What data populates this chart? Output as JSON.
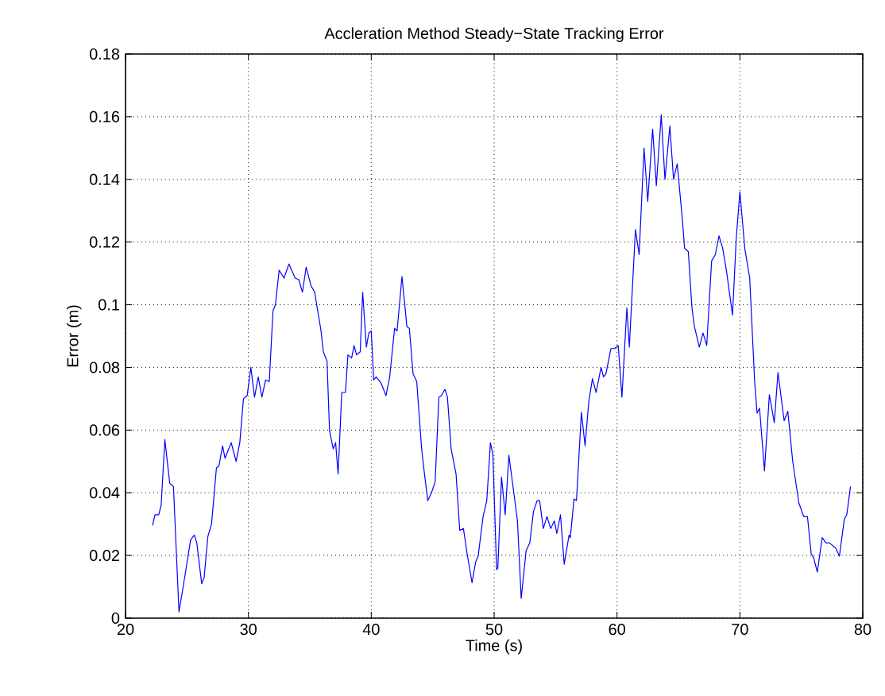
{
  "chart_data": {
    "type": "line",
    "title": "Accleration Method Steady−State Tracking Error",
    "xlabel": "Time (s)",
    "ylabel": "Error (m)",
    "xlim": [
      20,
      80
    ],
    "ylim": [
      0,
      0.18
    ],
    "xticks": [
      20,
      30,
      40,
      50,
      60,
      70,
      80
    ],
    "yticks": [
      0,
      0.02,
      0.04,
      0.06,
      0.08,
      0.1,
      0.12,
      0.14,
      0.16,
      0.18
    ],
    "grid": true,
    "line_style": "solid",
    "series": [
      {
        "color": "#0000ff",
        "x": [
          22.2,
          22.4,
          22.7,
          22.9,
          23.2,
          23.6,
          23.9,
          24.35,
          24.65,
          25.3,
          25.6,
          25.8,
          26.2,
          26.4,
          26.7,
          27.0,
          27.4,
          27.6,
          27.9,
          28.1,
          28.6,
          29.0,
          29.3,
          29.6,
          29.9,
          30.2,
          30.5,
          30.8,
          31.1,
          31.4,
          31.7,
          32.0,
          32.2,
          32.5,
          32.9,
          33.3,
          33.8,
          34.1,
          34.4,
          34.7,
          35.1,
          35.4,
          35.6,
          35.9,
          36.1,
          36.4,
          36.6,
          36.9,
          37.1,
          37.3,
          37.6,
          37.9,
          38.1,
          38.4,
          38.6,
          38.8,
          39.1,
          39.3,
          39.6,
          39.8,
          40.0,
          40.2,
          40.4,
          40.8,
          41.2,
          41.5,
          41.9,
          42.1,
          42.5,
          42.9,
          43.1,
          43.4,
          43.7,
          44.1,
          44.3,
          44.6,
          44.9,
          45.2,
          45.5,
          45.7,
          46.0,
          46.2,
          46.5,
          46.9,
          47.2,
          47.5,
          47.8,
          48.2,
          48.5,
          48.7,
          49.1,
          49.4,
          49.7,
          49.9,
          50.2,
          50.3,
          50.6,
          50.9,
          51.2,
          51.6,
          51.9,
          52.2,
          52.6,
          52.9,
          53.2,
          53.5,
          53.7,
          54.0,
          54.3,
          54.6,
          54.9,
          55.1,
          55.4,
          55.7,
          56.1,
          56.2,
          56.5,
          56.7,
          57.1,
          57.4,
          57.7,
          58.0,
          58.3,
          58.7,
          58.9,
          59.1,
          59.5,
          59.8,
          60.1,
          60.4,
          60.8,
          61.0,
          61.5,
          61.8,
          62.2,
          62.5,
          62.9,
          63.2,
          63.6,
          63.9,
          64.3,
          64.6,
          64.9,
          65.3,
          65.5,
          65.8,
          66.1,
          66.3,
          66.7,
          67.0,
          67.3,
          67.7,
          68.0,
          68.3,
          68.6,
          68.9,
          69.4,
          69.7,
          70.0,
          70.4,
          70.8,
          71.2,
          71.4,
          71.6,
          72.0,
          72.4,
          72.8,
          73.1,
          73.6,
          73.9,
          74.3,
          74.8,
          75.2,
          75.5,
          75.8,
          76.0,
          76.3,
          76.7,
          77.0,
          77.3,
          77.8,
          78.1,
          78.5,
          78.7,
          79.0
        ],
        "values": [
          0.0296,
          0.033,
          0.033,
          0.036,
          0.057,
          0.043,
          0.042,
          0.002,
          0.009,
          0.025,
          0.0265,
          0.024,
          0.011,
          0.013,
          0.026,
          0.03,
          0.048,
          0.0485,
          0.055,
          0.051,
          0.056,
          0.05,
          0.056,
          0.07,
          0.071,
          0.08,
          0.0705,
          0.077,
          0.0705,
          0.076,
          0.0755,
          0.098,
          0.1,
          0.111,
          0.1085,
          0.113,
          0.1085,
          0.108,
          0.104,
          0.112,
          0.106,
          0.104,
          0.099,
          0.092,
          0.085,
          0.082,
          0.06,
          0.054,
          0.056,
          0.046,
          0.072,
          0.072,
          0.084,
          0.083,
          0.087,
          0.084,
          0.085,
          0.104,
          0.0865,
          0.091,
          0.0916,
          0.076,
          0.077,
          0.075,
          0.071,
          0.077,
          0.0925,
          0.0916,
          0.109,
          0.093,
          0.0925,
          0.078,
          0.0755,
          0.054,
          0.047,
          0.0375,
          0.04,
          0.0435,
          0.0705,
          0.071,
          0.073,
          0.0705,
          0.054,
          0.046,
          0.028,
          0.0286,
          0.0206,
          0.0113,
          0.018,
          0.0198,
          0.0324,
          0.0375,
          0.056,
          0.052,
          0.0155,
          0.016,
          0.045,
          0.033,
          0.052,
          0.04,
          0.031,
          0.0063,
          0.0215,
          0.024,
          0.034,
          0.0375,
          0.0375,
          0.0286,
          0.0324,
          0.0286,
          0.031,
          0.027,
          0.033,
          0.0172,
          0.0265,
          0.0257,
          0.038,
          0.0375,
          0.0657,
          0.055,
          0.069,
          0.0764,
          0.072,
          0.08,
          0.077,
          0.078,
          0.086,
          0.086,
          0.087,
          0.0705,
          0.099,
          0.0865,
          0.124,
          0.116,
          0.15,
          0.133,
          0.156,
          0.138,
          0.1606,
          0.14,
          0.157,
          0.14,
          0.145,
          0.128,
          0.118,
          0.117,
          0.099,
          0.093,
          0.0865,
          0.091,
          0.087,
          0.114,
          0.116,
          0.122,
          0.118,
          0.111,
          0.0967,
          0.121,
          0.136,
          0.118,
          0.1085,
          0.0755,
          0.0654,
          0.067,
          0.047,
          0.0713,
          0.0624,
          0.0784,
          0.063,
          0.066,
          0.05,
          0.0367,
          0.0324,
          0.0324,
          0.0206,
          0.0193,
          0.0147,
          0.0257,
          0.024,
          0.024,
          0.0223,
          0.0198,
          0.0316,
          0.033,
          0.042
        ]
      }
    ]
  }
}
